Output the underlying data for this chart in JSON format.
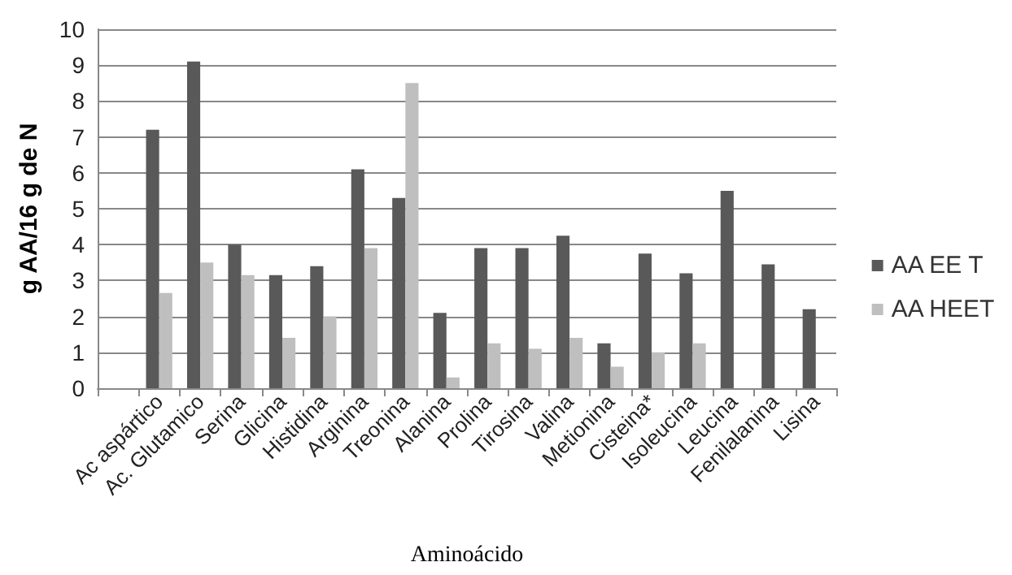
{
  "chart_data": {
    "type": "bar",
    "xlabel": "Aminoácido",
    "ylabel": "g AA/16 g de N",
    "categories": [
      null,
      "Ac aspártico",
      "Ac. Glutamico",
      "Serina",
      "Glicina",
      "Histidina",
      "Arginina",
      "Treonina",
      "Alanina",
      "Prolina",
      "Tirosina",
      "Valina",
      "Metionina",
      "Cisteina*",
      "Isoleucina",
      "Leucina",
      "Fenilalanina",
      "Lisina"
    ],
    "series": [
      {
        "name": "AA EE T",
        "color": "#595959",
        "values": [
          null,
          7.2,
          9.1,
          4.0,
          3.15,
          3.4,
          6.1,
          5.3,
          2.1,
          3.9,
          3.9,
          4.25,
          1.25,
          3.75,
          3.2,
          5.5,
          3.45,
          2.2
        ]
      },
      {
        "name": "AA HEET",
        "color": "#bfbfbf",
        "values": [
          null,
          2.65,
          3.5,
          3.15,
          1.4,
          2.0,
          3.9,
          8.5,
          0.3,
          1.25,
          1.1,
          1.4,
          0.6,
          1.0,
          1.25,
          null,
          null,
          null
        ]
      }
    ],
    "ylim": [
      0,
      10
    ],
    "yticks": [
      0,
      1,
      2,
      3,
      4,
      5,
      6,
      7,
      8,
      9,
      10
    ],
    "grid": "y",
    "legend": "right"
  }
}
